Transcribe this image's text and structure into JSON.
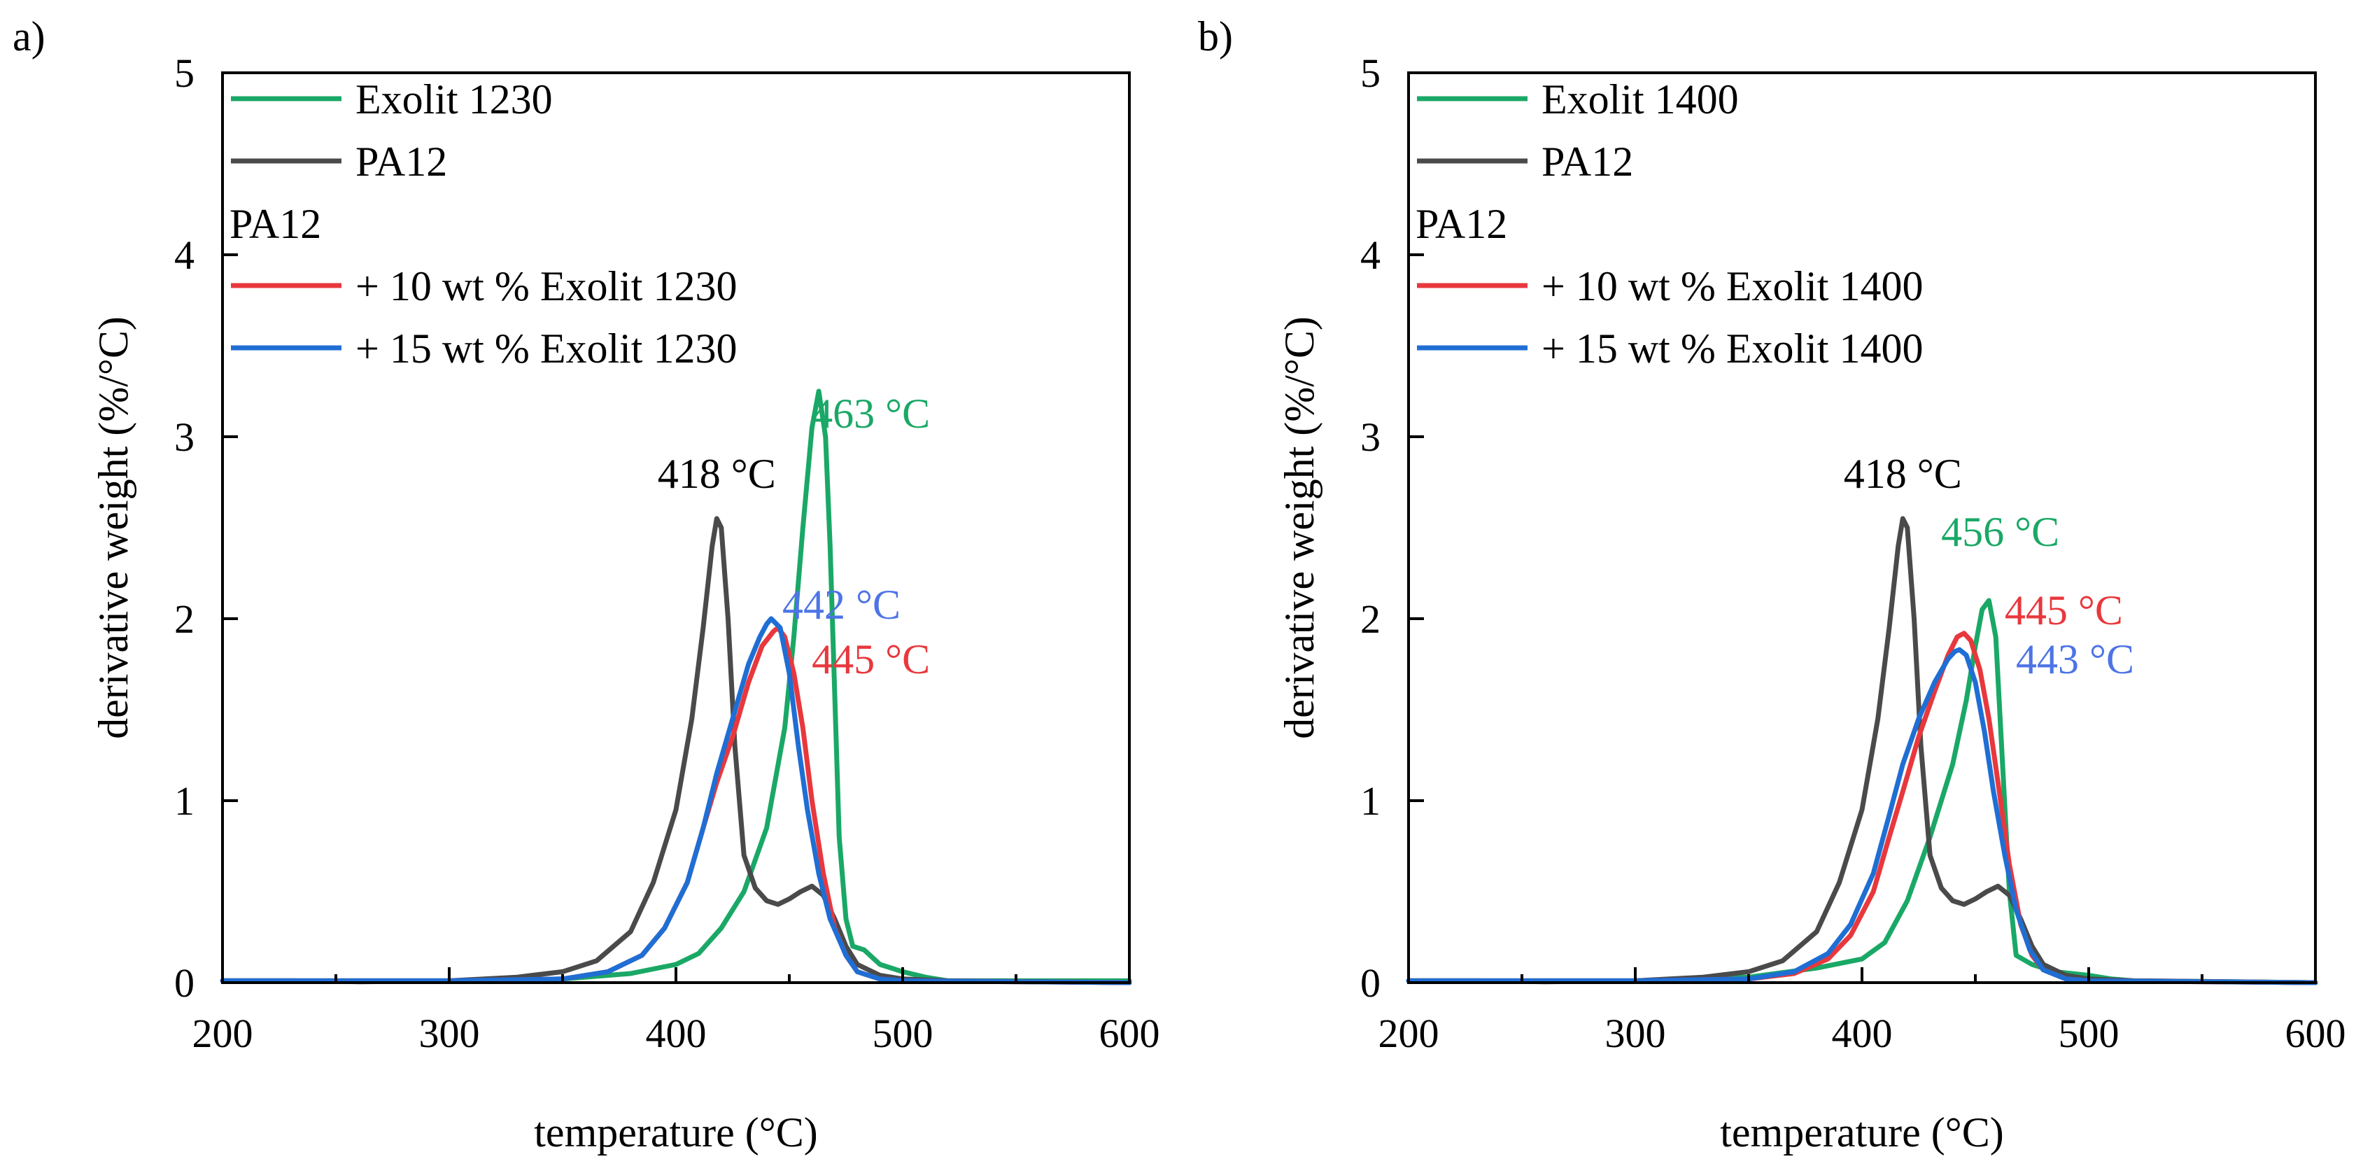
{
  "chart_data": [
    {
      "type": "line",
      "panel_label": "a)",
      "xlabel": "temperature (°C)",
      "ylabel": "derivative weight (%/°C)",
      "xlim": [
        200,
        600
      ],
      "ylim": [
        0,
        5
      ],
      "x_ticks": [
        200,
        300,
        400,
        500,
        600
      ],
      "x_minor_ticks": [
        250,
        350,
        450,
        550
      ],
      "y_ticks": [
        0,
        1,
        2,
        3,
        4,
        5
      ],
      "grid": false,
      "legend_position": "top-left",
      "legend_subheader": "PA12",
      "series": [
        {
          "name": "Exolit 1230",
          "color": "#1aa866",
          "points": [
            [
              200,
              0.01
            ],
            [
              250,
              0.01
            ],
            [
              300,
              0.01
            ],
            [
              350,
              0.02
            ],
            [
              380,
              0.05
            ],
            [
              400,
              0.1
            ],
            [
              410,
              0.16
            ],
            [
              420,
              0.3
            ],
            [
              430,
              0.5
            ],
            [
              440,
              0.85
            ],
            [
              448,
              1.4
            ],
            [
              452,
              1.9
            ],
            [
              456,
              2.5
            ],
            [
              460,
              3.05
            ],
            [
              463,
              3.25
            ],
            [
              466,
              3.0
            ],
            [
              468,
              2.4
            ],
            [
              470,
              1.6
            ],
            [
              472,
              0.8
            ],
            [
              475,
              0.35
            ],
            [
              478,
              0.2
            ],
            [
              483,
              0.18
            ],
            [
              490,
              0.1
            ],
            [
              500,
              0.06
            ],
            [
              510,
              0.03
            ],
            [
              520,
              0.01
            ],
            [
              600,
              0.01
            ]
          ]
        },
        {
          "name": "PA12",
          "color": "#4a4a4a",
          "points": [
            [
              200,
              0.01
            ],
            [
              230,
              0.01
            ],
            [
              260,
              0.005
            ],
            [
              300,
              0.01
            ],
            [
              330,
              0.03
            ],
            [
              350,
              0.06
            ],
            [
              365,
              0.12
            ],
            [
              380,
              0.28
            ],
            [
              390,
              0.55
            ],
            [
              400,
              0.95
            ],
            [
              407,
              1.45
            ],
            [
              412,
              1.95
            ],
            [
              416,
              2.4
            ],
            [
              418,
              2.55
            ],
            [
              420,
              2.5
            ],
            [
              423,
              2.0
            ],
            [
              426,
              1.3
            ],
            [
              430,
              0.7
            ],
            [
              435,
              0.52
            ],
            [
              440,
              0.45
            ],
            [
              445,
              0.43
            ],
            [
              450,
              0.46
            ],
            [
              455,
              0.5
            ],
            [
              460,
              0.53
            ],
            [
              465,
              0.48
            ],
            [
              470,
              0.35
            ],
            [
              475,
              0.2
            ],
            [
              480,
              0.1
            ],
            [
              490,
              0.04
            ],
            [
              500,
              0.02
            ],
            [
              520,
              0.01
            ],
            [
              600,
              0.0
            ]
          ]
        },
        {
          "name": "+ 10 wt % Exolit 1230",
          "color": "#e8383d",
          "points": [
            [
              200,
              0.01
            ],
            [
              300,
              0.01
            ],
            [
              350,
              0.02
            ],
            [
              370,
              0.06
            ],
            [
              385,
              0.15
            ],
            [
              395,
              0.3
            ],
            [
              405,
              0.55
            ],
            [
              412,
              0.85
            ],
            [
              418,
              1.1
            ],
            [
              425,
              1.35
            ],
            [
              432,
              1.65
            ],
            [
              438,
              1.85
            ],
            [
              443,
              1.93
            ],
            [
              445,
              1.95
            ],
            [
              448,
              1.9
            ],
            [
              452,
              1.7
            ],
            [
              456,
              1.4
            ],
            [
              460,
              1.0
            ],
            [
              465,
              0.6
            ],
            [
              470,
              0.3
            ],
            [
              475,
              0.15
            ],
            [
              480,
              0.06
            ],
            [
              490,
              0.02
            ],
            [
              500,
              0.01
            ],
            [
              600,
              0.0
            ]
          ]
        },
        {
          "name": "+ 15 wt % Exolit 1230",
          "color": "#1f6ed4",
          "points": [
            [
              200,
              0.01
            ],
            [
              300,
              0.01
            ],
            [
              350,
              0.02
            ],
            [
              370,
              0.06
            ],
            [
              385,
              0.15
            ],
            [
              395,
              0.3
            ],
            [
              405,
              0.55
            ],
            [
              412,
              0.85
            ],
            [
              418,
              1.15
            ],
            [
              425,
              1.45
            ],
            [
              432,
              1.75
            ],
            [
              437,
              1.9
            ],
            [
              440,
              1.97
            ],
            [
              442,
              2.0
            ],
            [
              446,
              1.95
            ],
            [
              450,
              1.7
            ],
            [
              454,
              1.3
            ],
            [
              458,
              0.95
            ],
            [
              463,
              0.6
            ],
            [
              468,
              0.35
            ],
            [
              475,
              0.15
            ],
            [
              480,
              0.06
            ],
            [
              490,
              0.02
            ],
            [
              500,
              0.01
            ],
            [
              600,
              0.0
            ]
          ]
        }
      ],
      "annotations": [
        {
          "text": "418 °C",
          "x": 418,
          "y": 2.72,
          "color": "#000000"
        },
        {
          "text": "463 °C",
          "x": 486,
          "y": 3.05,
          "color": "#1aa866"
        },
        {
          "text": "442 °C",
          "x": 473,
          "y": 2.0,
          "color": "#4d74e6"
        },
        {
          "text": "445 °C",
          "x": 486,
          "y": 1.7,
          "color": "#e8383d"
        }
      ]
    },
    {
      "type": "line",
      "panel_label": "b)",
      "xlabel": "temperature (°C)",
      "ylabel": "derivative weight (%/°C)",
      "xlim": [
        200,
        600
      ],
      "ylim": [
        0,
        5
      ],
      "x_ticks": [
        200,
        300,
        400,
        500,
        600
      ],
      "x_minor_ticks": [
        250,
        350,
        450,
        550
      ],
      "y_ticks": [
        0,
        1,
        2,
        3,
        4,
        5
      ],
      "grid": false,
      "legend_position": "top-left",
      "legend_subheader": "PA12",
      "series": [
        {
          "name": "Exolit 1400",
          "color": "#1aa866",
          "points": [
            [
              200,
              0.01
            ],
            [
              250,
              0.01
            ],
            [
              300,
              0.01
            ],
            [
              350,
              0.03
            ],
            [
              380,
              0.08
            ],
            [
              400,
              0.13
            ],
            [
              410,
              0.22
            ],
            [
              420,
              0.45
            ],
            [
              430,
              0.8
            ],
            [
              440,
              1.2
            ],
            [
              446,
              1.55
            ],
            [
              450,
              1.85
            ],
            [
              453,
              2.05
            ],
            [
              456,
              2.1
            ],
            [
              459,
              1.9
            ],
            [
              462,
              1.2
            ],
            [
              465,
              0.5
            ],
            [
              468,
              0.15
            ],
            [
              475,
              0.1
            ],
            [
              485,
              0.06
            ],
            [
              500,
              0.04
            ],
            [
              510,
              0.02
            ],
            [
              520,
              0.01
            ],
            [
              600,
              0.0
            ]
          ]
        },
        {
          "name": "PA12",
          "color": "#4a4a4a",
          "points": [
            [
              200,
              0.01
            ],
            [
              230,
              0.01
            ],
            [
              260,
              0.005
            ],
            [
              300,
              0.01
            ],
            [
              330,
              0.03
            ],
            [
              350,
              0.06
            ],
            [
              365,
              0.12
            ],
            [
              380,
              0.28
            ],
            [
              390,
              0.55
            ],
            [
              400,
              0.95
            ],
            [
              407,
              1.45
            ],
            [
              412,
              1.95
            ],
            [
              416,
              2.4
            ],
            [
              418,
              2.55
            ],
            [
              420,
              2.5
            ],
            [
              423,
              2.0
            ],
            [
              426,
              1.3
            ],
            [
              430,
              0.7
            ],
            [
              435,
              0.52
            ],
            [
              440,
              0.45
            ],
            [
              445,
              0.43
            ],
            [
              450,
              0.46
            ],
            [
              455,
              0.5
            ],
            [
              460,
              0.53
            ],
            [
              465,
              0.48
            ],
            [
              470,
              0.35
            ],
            [
              475,
              0.2
            ],
            [
              480,
              0.1
            ],
            [
              490,
              0.04
            ],
            [
              500,
              0.02
            ],
            [
              520,
              0.01
            ],
            [
              600,
              0.0
            ]
          ]
        },
        {
          "name": "+ 10 wt % Exolit 1400",
          "color": "#e8383d",
          "points": [
            [
              200,
              0.01
            ],
            [
              300,
              0.01
            ],
            [
              350,
              0.02
            ],
            [
              370,
              0.05
            ],
            [
              385,
              0.13
            ],
            [
              395,
              0.26
            ],
            [
              405,
              0.5
            ],
            [
              412,
              0.8
            ],
            [
              418,
              1.05
            ],
            [
              425,
              1.35
            ],
            [
              432,
              1.6
            ],
            [
              438,
              1.8
            ],
            [
              442,
              1.9
            ],
            [
              445,
              1.92
            ],
            [
              448,
              1.88
            ],
            [
              452,
              1.72
            ],
            [
              456,
              1.45
            ],
            [
              460,
              1.1
            ],
            [
              465,
              0.65
            ],
            [
              470,
              0.32
            ],
            [
              475,
              0.15
            ],
            [
              480,
              0.07
            ],
            [
              490,
              0.02
            ],
            [
              500,
              0.01
            ],
            [
              600,
              0.0
            ]
          ]
        },
        {
          "name": "+ 15 wt % Exolit 1400",
          "color": "#1f6ed4",
          "points": [
            [
              200,
              0.01
            ],
            [
              300,
              0.01
            ],
            [
              350,
              0.02
            ],
            [
              370,
              0.06
            ],
            [
              385,
              0.16
            ],
            [
              395,
              0.32
            ],
            [
              405,
              0.6
            ],
            [
              412,
              0.92
            ],
            [
              418,
              1.2
            ],
            [
              425,
              1.45
            ],
            [
              432,
              1.65
            ],
            [
              438,
              1.78
            ],
            [
              441,
              1.82
            ],
            [
              443,
              1.83
            ],
            [
              446,
              1.8
            ],
            [
              450,
              1.65
            ],
            [
              454,
              1.38
            ],
            [
              458,
              1.05
            ],
            [
              463,
              0.7
            ],
            [
              468,
              0.4
            ],
            [
              474,
              0.18
            ],
            [
              480,
              0.07
            ],
            [
              490,
              0.02
            ],
            [
              500,
              0.01
            ],
            [
              600,
              0.0
            ]
          ]
        }
      ],
      "annotations": [
        {
          "text": "418 °C",
          "x": 418,
          "y": 2.72,
          "color": "#000000"
        },
        {
          "text": "456 °C",
          "x": 461,
          "y": 2.4,
          "color": "#1aa866"
        },
        {
          "text": "445 °C",
          "x": 489,
          "y": 1.97,
          "color": "#e8383d"
        },
        {
          "text": "443 °C",
          "x": 494,
          "y": 1.7,
          "color": "#4d74e6"
        }
      ]
    }
  ]
}
